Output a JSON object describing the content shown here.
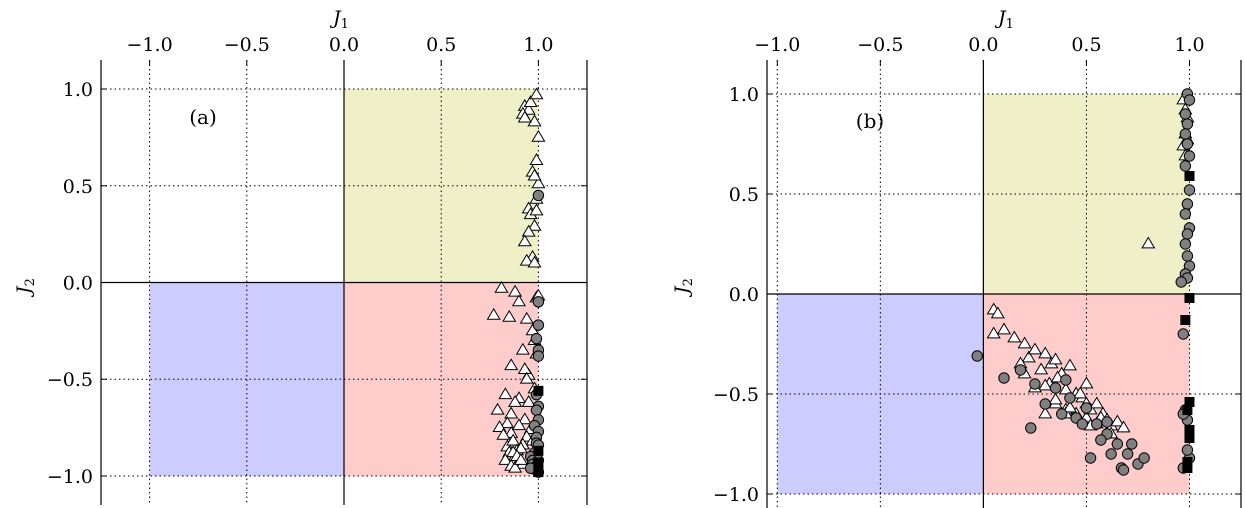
{
  "chart_data": [
    {
      "type": "scatter",
      "panel_label": "(a)",
      "xlabel": "J",
      "xlabel_sub": "1",
      "ylabel": "J",
      "ylabel_sub": "2",
      "xlim": [
        -1.25,
        1.25
      ],
      "ylim": [
        -1.15,
        1.15
      ],
      "xticks": [
        -1.0,
        -0.5,
        0.0,
        0.5,
        1.0
      ],
      "xtick_labels": [
        "−1.0",
        "−0.5",
        "0.0",
        "0.5",
        "1.0"
      ],
      "yticks": [
        1.0,
        0.5,
        0.0,
        -0.5,
        -1.0
      ],
      "ytick_labels": [
        "1.0",
        "0.5",
        "0.0",
        "−0.5",
        "−1.0"
      ],
      "x_axis_position": "top",
      "grid": true,
      "regions": [
        {
          "x": [
            0,
            1
          ],
          "y": [
            0,
            1
          ],
          "color": "#f0f0c8"
        },
        {
          "x": [
            0,
            1
          ],
          "y": [
            -1,
            0
          ],
          "color": "#ffcccc"
        },
        {
          "x": [
            -1,
            0
          ],
          "y": [
            -1,
            0
          ],
          "color": "#ccccff"
        }
      ],
      "series": [
        {
          "marker": "triangle",
          "color": "#ffffff",
          "x": [
            0.93,
            0.95,
            0.98,
            0.92,
            0.96,
            0.99,
            0.93,
            1.0,
            0.99,
            0.97,
            1.0,
            0.98,
            0.99,
            0.95,
            0.96,
            0.98,
            0.99,
            0.95,
            0.93,
            0.97,
            0.94,
            0.98,
            0.81,
            0.88,
            0.9,
            0.85,
            0.99,
            1.0,
            0.77,
            0.94,
            0.97,
            0.98,
            0.92,
            0.99,
            0.86,
            0.95,
            0.93,
            0.94,
            0.98,
            0.83,
            0.9,
            0.95,
            0.79,
            0.86,
            0.88,
            0.93,
            0.84,
            0.96,
            0.8,
            0.86,
            0.9,
            0.94,
            0.97,
            0.82,
            0.84,
            0.87,
            0.89,
            0.92,
            0.85,
            0.88,
            0.91,
            0.83,
            0.87,
            0.9,
            0.86,
            0.89,
            0.92,
            0.88,
            0.91
          ],
          "y": [
            0.91,
            0.89,
            0.83,
            0.87,
            0.93,
            0.97,
            0.85,
            0.75,
            0.63,
            0.57,
            0.51,
            0.55,
            0.43,
            0.38,
            0.35,
            0.29,
            0.37,
            0.26,
            0.21,
            0.13,
            0.11,
            0.1,
            -0.03,
            -0.05,
            -0.1,
            -0.18,
            -0.08,
            -0.07,
            -0.17,
            -0.19,
            -0.25,
            -0.3,
            -0.35,
            -0.37,
            -0.43,
            -0.48,
            -0.45,
            -0.5,
            -0.55,
            -0.58,
            -0.6,
            -0.62,
            -0.66,
            -0.68,
            -0.62,
            -0.71,
            -0.73,
            -0.76,
            -0.75,
            -0.78,
            -0.74,
            -0.8,
            -0.82,
            -0.79,
            -0.85,
            -0.82,
            -0.87,
            -0.84,
            -0.88,
            -0.9,
            -0.86,
            -0.92,
            -0.88,
            -0.93,
            -0.95,
            -0.9,
            -0.94,
            -0.96,
            -0.92
          ]
        },
        {
          "marker": "circle",
          "color": "#808080",
          "x": [
            1.0,
            1.0,
            1.0,
            0.99,
            1.0,
            1.0,
            0.99,
            1.0,
            0.99,
            1.0,
            0.98,
            1.0,
            0.99,
            0.99,
            1.0,
            0.98,
            0.96,
            0.97,
            0.97,
            0.99,
            0.98,
            0.99,
            1.0,
            0.96,
            1.0
          ],
          "y": [
            0.45,
            -0.1,
            -0.22,
            -0.29,
            -0.35,
            -0.38,
            -0.58,
            -0.64,
            -0.66,
            -0.71,
            -0.74,
            -0.77,
            -0.8,
            -0.83,
            -0.84,
            -0.88,
            -0.9,
            -0.92,
            -0.94,
            -0.95,
            -0.96,
            -0.97,
            -0.98,
            -0.96,
            -0.92
          ]
        },
        {
          "marker": "square",
          "color": "#000000",
          "x": [
            1.0,
            1.0,
            1.0,
            1.0,
            1.0
          ],
          "y": [
            -0.56,
            -0.87,
            -0.93,
            -0.97,
            -0.98
          ]
        }
      ]
    },
    {
      "type": "scatter",
      "panel_label": "(b)",
      "xlabel": "J",
      "xlabel_sub": "1",
      "ylabel": "J",
      "ylabel_sub": "2",
      "xlim": [
        -1.05,
        1.25
      ],
      "ylim": [
        -1.07,
        1.17
      ],
      "xticks": [
        -1.0,
        -0.5,
        0.0,
        0.5,
        1.0
      ],
      "xtick_labels": [
        "−1.0",
        "−0.5",
        "0.0",
        "0.5",
        "1.0"
      ],
      "yticks": [
        1.0,
        0.5,
        0.0,
        -0.5,
        -1.0
      ],
      "ytick_labels": [
        "1.0",
        "0.5",
        "0.0",
        "−0.5",
        "−1.0"
      ],
      "x_axis_position": "top",
      "grid": true,
      "regions": [
        {
          "x": [
            0,
            1
          ],
          "y": [
            0,
            1
          ],
          "color": "#f0f0c8"
        },
        {
          "x": [
            0,
            1
          ],
          "y": [
            -1,
            0
          ],
          "color": "#ffcccc"
        },
        {
          "x": [
            -1,
            0
          ],
          "y": [
            -1,
            0
          ],
          "color": "#ccccff"
        }
      ],
      "series": [
        {
          "marker": "triangle",
          "color": "#ffffff",
          "x": [
            0.97,
            0.98,
            0.99,
            0.98,
            0.99,
            0.97,
            0.98,
            0.8,
            0.05,
            0.07,
            0.05,
            0.1,
            0.15,
            0.2,
            0.22,
            0.18,
            0.25,
            0.3,
            0.28,
            0.33,
            0.35,
            0.38,
            0.32,
            0.36,
            0.4,
            0.42,
            0.45,
            0.48,
            0.5,
            0.3,
            0.25,
            0.2,
            0.35,
            0.4,
            0.45,
            0.5,
            0.52,
            0.55,
            0.58,
            0.6,
            0.62,
            0.65,
            0.68,
            0.55,
            0.6,
            0.5,
            0.4,
            0.45,
            0.3,
            0.35,
            0.42,
            0.47,
            0.52,
            0.57,
            0.62
          ],
          "y": [
            0.97,
            0.92,
            0.88,
            0.8,
            0.77,
            0.74,
            0.69,
            0.25,
            -0.08,
            -0.1,
            -0.2,
            -0.18,
            -0.22,
            -0.25,
            -0.32,
            -0.35,
            -0.28,
            -0.3,
            -0.38,
            -0.35,
            -0.33,
            -0.4,
            -0.45,
            -0.42,
            -0.48,
            -0.36,
            -0.5,
            -0.52,
            -0.55,
            -0.46,
            -0.47,
            -0.4,
            -0.55,
            -0.58,
            -0.6,
            -0.62,
            -0.58,
            -0.65,
            -0.6,
            -0.63,
            -0.66,
            -0.64,
            -0.67,
            -0.55,
            -0.7,
            -0.45,
            -0.6,
            -0.5,
            -0.6,
            -0.53,
            -0.57,
            -0.5,
            -0.66,
            -0.62,
            -0.7
          ]
        },
        {
          "marker": "circle",
          "color": "#808080",
          "x": [
            0.99,
            1.0,
            0.98,
            0.99,
            0.98,
            0.99,
            1.0,
            0.98,
            1.0,
            0.99,
            0.98,
            1.0,
            0.99,
            0.98,
            0.99,
            1.0,
            0.98,
            0.99,
            0.96,
            0.97,
            -0.03,
            0.1,
            0.18,
            0.25,
            0.35,
            0.42,
            0.5,
            0.3,
            0.38,
            0.45,
            0.55,
            0.6,
            0.48,
            0.6,
            0.65,
            0.7,
            0.75,
            0.78,
            0.62,
            0.67,
            0.72,
            0.57,
            0.52,
            0.68,
            0.23,
            0.4,
            0.98,
            0.99,
            0.97,
            1.0,
            0.97,
            0.99
          ],
          "y": [
            1.0,
            0.97,
            0.9,
            0.85,
            0.8,
            0.75,
            0.69,
            0.64,
            0.52,
            0.45,
            0.4,
            0.33,
            0.3,
            0.25,
            0.19,
            0.14,
            0.1,
            0.08,
            0.06,
            -0.2,
            -0.31,
            -0.42,
            -0.38,
            -0.45,
            -0.47,
            -0.52,
            -0.57,
            -0.55,
            -0.6,
            -0.62,
            -0.65,
            -0.64,
            -0.65,
            -0.7,
            -0.75,
            -0.8,
            -0.85,
            -0.82,
            -0.8,
            -0.87,
            -0.75,
            -0.73,
            -0.82,
            -0.88,
            -0.67,
            -0.43,
            -0.58,
            -0.63,
            -0.6,
            -0.82,
            -0.87,
            -0.78
          ]
        },
        {
          "marker": "square",
          "color": "#000000",
          "x": [
            1.0,
            1.0,
            0.98,
            1.0,
            0.99,
            1.0,
            1.0,
            0.99,
            0.99
          ],
          "y": [
            0.59,
            -0.02,
            -0.13,
            -0.54,
            -0.58,
            -0.68,
            -0.72,
            -0.84,
            -0.87
          ]
        }
      ]
    }
  ]
}
